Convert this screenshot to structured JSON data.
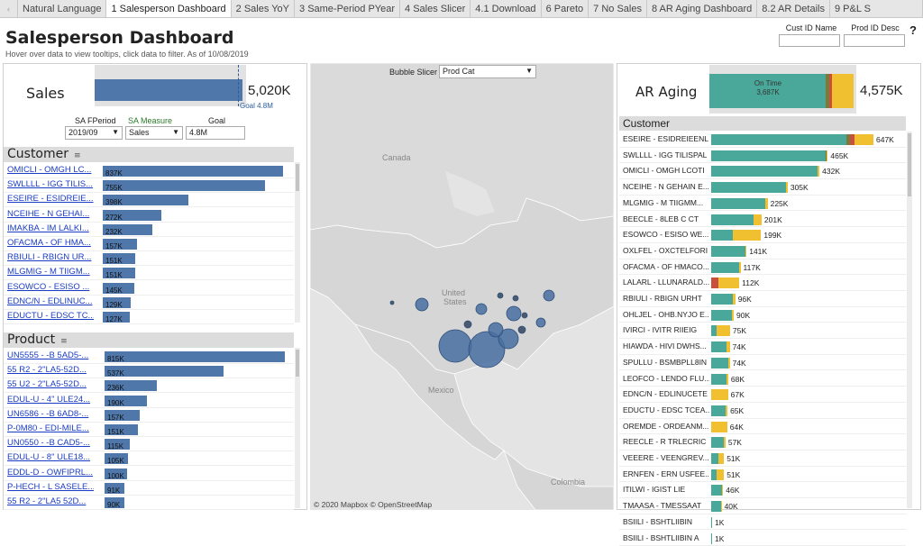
{
  "tabs": [
    "Natural Language",
    "1 Salesperson Dashboard",
    "2 Sales YoY",
    "3 Same-Period PYear",
    "4 Sales Slicer",
    "4.1 Download",
    "6 Pareto",
    "7 No Sales",
    "8 AR Aging Dashboard",
    "8.2 AR Details",
    "9 P&L S"
  ],
  "active_tab": 1,
  "nav_prev": "‹",
  "header": {
    "title": "Salesperson Dashboard",
    "subtitle": "Hover over data to view tooltips, click data to filter. As of  10/08/2019",
    "cust_id_label": "Cust ID Name",
    "prod_id_label": "Prod ID Desc",
    "help": "?"
  },
  "sales": {
    "label": "Sales",
    "value": "5,020K",
    "goal_text": "Goal 4.8M",
    "fill": 0.976,
    "goal_fraction": 0.945
  },
  "controls": {
    "period_label": "SA FPeriod",
    "period_value": "2019/09",
    "measure_label": "SA Measure",
    "measure_value": "Sales",
    "goal_label": "Goal",
    "goal_value": "4.8M"
  },
  "customer": {
    "header": "Customer",
    "max": 837,
    "rows": [
      {
        "label": "OMICLI - OMGH LC...",
        "value": 837,
        "text": "837K"
      },
      {
        "label": "SWLLLL - IGG TILIS...",
        "value": 755,
        "text": "755K"
      },
      {
        "label": "ESEIRE - ESIDREIE...",
        "value": 398,
        "text": "398K"
      },
      {
        "label": "NCEIHE - N GEHAI...",
        "value": 272,
        "text": "272K"
      },
      {
        "label": "IMAKBA - IM LALKI...",
        "value": 232,
        "text": "232K"
      },
      {
        "label": "OFACMA - OF HMA...",
        "value": 157,
        "text": "157K"
      },
      {
        "label": "RBIULI - RBIGN UR...",
        "value": 151,
        "text": "151K"
      },
      {
        "label": "MLGMIG - M TIIGM...",
        "value": 151,
        "text": "151K"
      },
      {
        "label": "ESOWCO - ESISO ...",
        "value": 145,
        "text": "145K"
      },
      {
        "label": "EDNC/N - EDLINUC...",
        "value": 129,
        "text": "129K"
      },
      {
        "label": "EDUCTU - EDSC TC...",
        "value": 127,
        "text": "127K"
      }
    ]
  },
  "product": {
    "header": "Product",
    "max": 815,
    "rows": [
      {
        "label": "UN5555 - -B 5AD5-...",
        "value": 815,
        "text": "815K"
      },
      {
        "label": "55 R2 - 2\"LA5-52D...",
        "value": 537,
        "text": "537K"
      },
      {
        "label": "55 U2 - 2\"LA5-52D...",
        "value": 236,
        "text": "236K"
      },
      {
        "label": "EDUL-U - 4\" ULE24...",
        "value": 190,
        "text": "190K"
      },
      {
        "label": "UN6586 - -B 6AD8-...",
        "value": 157,
        "text": "157K"
      },
      {
        "label": "P-0M80 - EDI-MILE...",
        "value": 151,
        "text": "151K"
      },
      {
        "label": "UN0550 - -B CAD5-...",
        "value": 115,
        "text": "115K"
      },
      {
        "label": "EDUL-U - 8\" ULE18...",
        "value": 105,
        "text": "105K"
      },
      {
        "label": "EDDL-D - OWFIPRL...",
        "value": 100,
        "text": "100K"
      },
      {
        "label": "P-HECH - L SASELE...",
        "value": 91,
        "text": "91K"
      },
      {
        "label": "55 R2 - 2\"LA5 52D...",
        "value": 90,
        "text": "90K"
      }
    ]
  },
  "map": {
    "slicer_label": "Bubble Slicer",
    "slicer_value": "Prod Cat",
    "labels": {
      "canada": "Canada",
      "united": "United",
      "states": "States",
      "mexico": "Mexico",
      "colombia": "Colombia"
    },
    "credit": "© 2020 Mapbox  © OpenStreetMap"
  },
  "ar": {
    "label": "AR Aging",
    "value": "4,575K",
    "ontime_label": "On Time",
    "ontime_value": "3,687K",
    "segments": [
      {
        "name": "on-time",
        "value": 3687,
        "color": "#4aa89a"
      },
      {
        "name": "late-1",
        "value": 120,
        "color": "#7a7a3a"
      },
      {
        "name": "late-2",
        "value": 90,
        "color": "#c9503c"
      },
      {
        "name": "late-3",
        "value": 678,
        "color": "#f0c030"
      }
    ],
    "total": 4575,
    "customer_header": "Customer",
    "max": 647,
    "rows": [
      {
        "label": "ESEIRE - ESIDREIEENL",
        "text": "647K",
        "segs": [
          540,
          15,
          15,
          77
        ]
      },
      {
        "label": "SWLLLL - IGG TILISPAL",
        "text": "465K",
        "segs": [
          455,
          5,
          0,
          5
        ]
      },
      {
        "label": "OMICLI - OMGH LCOTI",
        "text": "432K",
        "segs": [
          425,
          0,
          0,
          7
        ]
      },
      {
        "label": "NCEIHE - N GEHAIN E...",
        "text": "305K",
        "segs": [
          298,
          0,
          0,
          7
        ]
      },
      {
        "label": "MLGMIG - M TIIGMM...",
        "text": "225K",
        "segs": [
          215,
          0,
          0,
          10
        ]
      },
      {
        "label": "BEECLE - 8LEB C CT",
        "text": "201K",
        "segs": [
          170,
          0,
          0,
          31
        ]
      },
      {
        "label": "ESOWCO - ESISO WE...",
        "text": "199K",
        "segs": [
          85,
          0,
          0,
          114
        ]
      },
      {
        "label": "OXLFEL - OXCTELFORI",
        "text": "141K",
        "segs": [
          136,
          0,
          0,
          5
        ]
      },
      {
        "label": "OFACMA - OF HMACO...",
        "text": "117K",
        "segs": [
          112,
          0,
          0,
          5
        ]
      },
      {
        "label": "LALARL - LLUNARALD...",
        "text": "112K",
        "segs": [
          0,
          0,
          30,
          82
        ]
      },
      {
        "label": "RBIULI - RBIGN URHT",
        "text": "96K",
        "segs": [
          88,
          0,
          0,
          8
        ]
      },
      {
        "label": "OHLJEL - OHB.NYJO E...",
        "text": "90K",
        "segs": [
          84,
          0,
          0,
          6
        ]
      },
      {
        "label": "IVIRCI - IVITR RIIEIG",
        "text": "75K",
        "segs": [
          20,
          0,
          0,
          55
        ]
      },
      {
        "label": "HIAWDA - HIVI DWHS...",
        "text": "74K",
        "segs": [
          60,
          0,
          0,
          14
        ]
      },
      {
        "label": "SPULLU - BSMBPLL8IN",
        "text": "74K",
        "segs": [
          68,
          0,
          0,
          6
        ]
      },
      {
        "label": "LEOFCO - LENDO FLU...",
        "text": "68K",
        "segs": [
          62,
          0,
          0,
          6
        ]
      },
      {
        "label": "EDNC/N - EDLINUCETE",
        "text": "67K",
        "segs": [
          0,
          0,
          0,
          67
        ]
      },
      {
        "label": "EDUCTU - EDSC TCEA...",
        "text": "65K",
        "segs": [
          58,
          0,
          0,
          7
        ]
      },
      {
        "label": "OREMDE - ORDEANM...",
        "text": "64K",
        "segs": [
          0,
          0,
          0,
          64
        ]
      },
      {
        "label": "REECLE - R TRLECRIC",
        "text": "57K",
        "segs": [
          50,
          0,
          0,
          7
        ]
      },
      {
        "label": "VEEERE - VEENGREV...",
        "text": "51K",
        "segs": [
          30,
          0,
          0,
          21
        ]
      },
      {
        "label": "ERNFEN - ERN USFEE...",
        "text": "51K",
        "segs": [
          20,
          0,
          0,
          31
        ]
      },
      {
        "label": "ITILWI - IGIST LIE",
        "text": "46K",
        "segs": [
          44,
          0,
          0,
          2
        ]
      },
      {
        "label": "TMAASA - TMESSAAT",
        "text": "40K",
        "segs": [
          38,
          0,
          0,
          2
        ]
      },
      {
        "label": "BSIILI - BSHTLIIBIN",
        "text": "1K",
        "segs": [
          1,
          0,
          0,
          0
        ]
      },
      {
        "label": "BSIILI - BSHTLIIBIN A",
        "text": "1K",
        "segs": [
          1,
          0,
          0,
          0
        ]
      }
    ]
  }
}
